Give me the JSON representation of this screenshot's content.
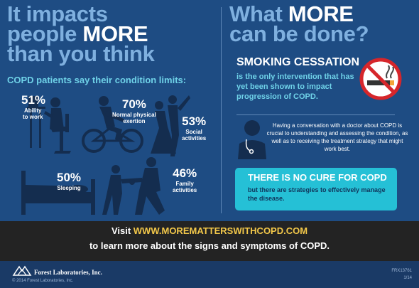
{
  "left": {
    "headline_1": "It impacts",
    "headline_2a": "people ",
    "headline_2b": "MORE",
    "headline_3": "than you think",
    "subtitle": "COPD patients say their condition limits:",
    "stats": [
      {
        "pct": "51%",
        "label_1": "Ability",
        "label_2": "to work"
      },
      {
        "pct": "70%",
        "label_1": "Normal physical",
        "label_2": "exertion"
      },
      {
        "pct": "53%",
        "label_1": "Social",
        "label_2": "activities"
      },
      {
        "pct": "50%",
        "label_1": "Sleeping",
        "label_2": ""
      },
      {
        "pct": "46%",
        "label_1": "Family",
        "label_2": "activities"
      }
    ]
  },
  "right": {
    "headline_1a": "What ",
    "headline_1b": "MORE",
    "headline_2": "can be done?",
    "smoking_title": "SMOKING CESSATION",
    "smoking_body": "is the only intervention that has yet been shown to impact progression of COPD.",
    "conversation": "Having a conversation with a doctor about COPD is crucial to understanding and assessing the condition, as well as to receiving the treatment strategy that might work best.",
    "cure_title": "THERE IS NO CURE FOR COPD",
    "cure_body": "but there are strategies to effectively manage the disease."
  },
  "banner": {
    "visit": "Visit ",
    "url": "WWW.MOREMATTERSWITHCOPD.COM",
    "line2": "to learn more about the signs and symptoms of COPD."
  },
  "footer": {
    "company": "Forest Laboratories, Inc.",
    "copyright": "© 2014 Forest Laboratories, Inc.",
    "code": "FRX13761",
    "date": "1/14"
  },
  "colors": {
    "background": "#1e4c83",
    "headline_accent": "#7fb0df",
    "cyan": "#6fd2e8",
    "cure_box": "#25c0d6",
    "url": "#f3c84a",
    "no_smoking_red": "#d6262b"
  },
  "icons": [
    "person-at-desk-icon",
    "cyclist-icon",
    "dancing-couple-icon",
    "bed-icon",
    "parent-child-icon",
    "no-smoking-icon",
    "doctor-icon",
    "forest-logo-icon"
  ]
}
